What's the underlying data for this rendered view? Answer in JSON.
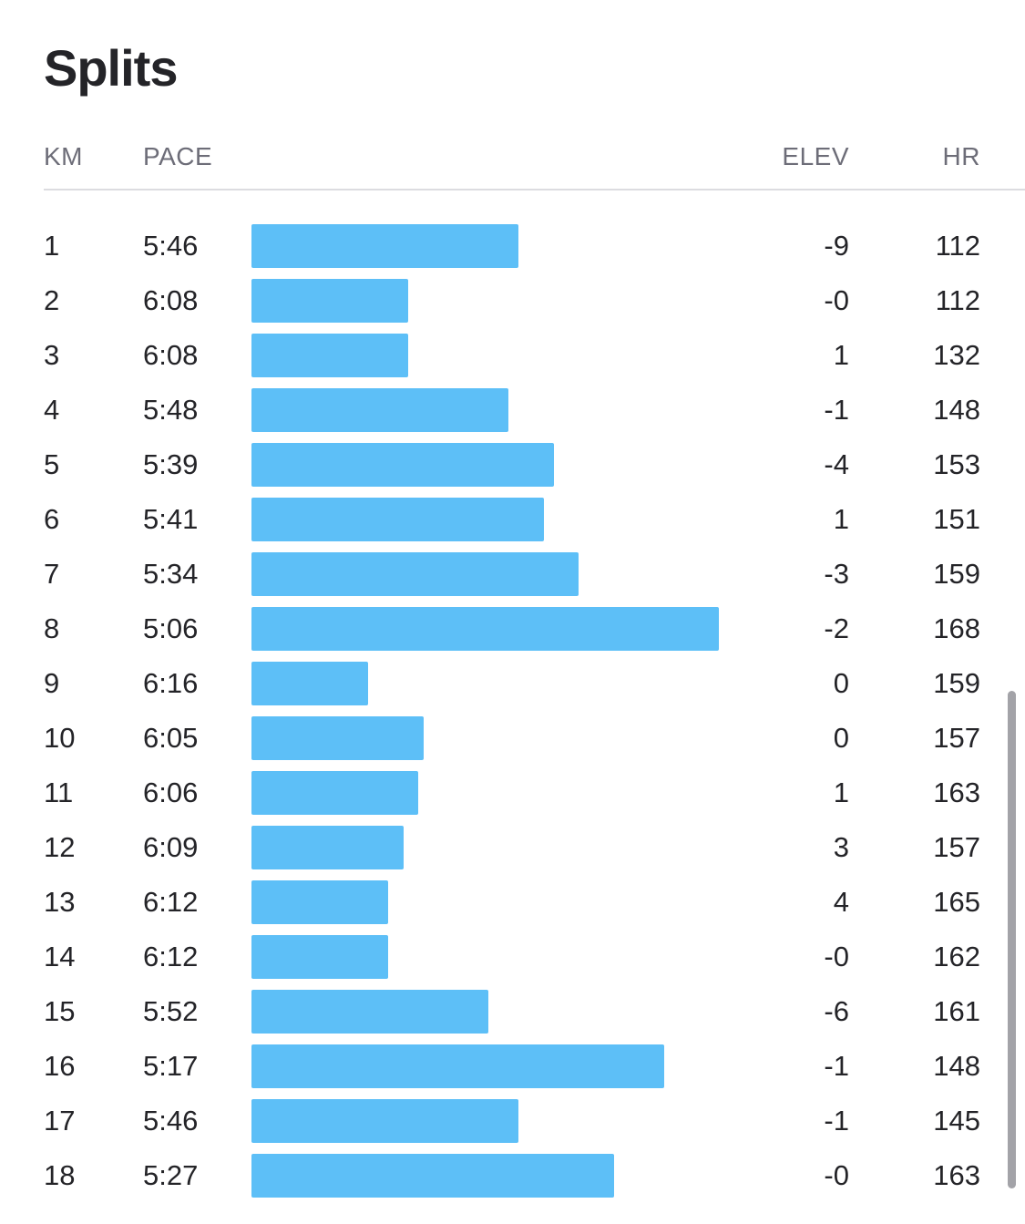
{
  "title": "Splits",
  "columns": {
    "km": "KM",
    "pace": "PACE",
    "elev": "ELEV",
    "hr": "HR"
  },
  "colors": {
    "bar": "#5dbff7",
    "text": "#242428",
    "header_text": "#6d6d78",
    "divider": "#dcdce0"
  },
  "chart_data": {
    "type": "bar",
    "orientation": "horizontal",
    "categories": [
      "1",
      "2",
      "3",
      "4",
      "5",
      "6",
      "7",
      "8",
      "9",
      "10",
      "11",
      "12",
      "13",
      "14",
      "15",
      "16",
      "17",
      "18"
    ],
    "series": [
      {
        "values": [
          "5:46",
          "6:08",
          "6:08",
          "5:48",
          "5:39",
          "5:41",
          "5:34",
          "5:06",
          "6:16",
          "6:05",
          "6:06",
          "6:09",
          "6:12",
          "6:12",
          "5:52",
          "5:17",
          "5:46",
          "5:27"
        ]
      }
    ]
  },
  "splits": [
    {
      "km": "1",
      "pace": "5:46",
      "elev": "-9",
      "hr": "112"
    },
    {
      "km": "2",
      "pace": "6:08",
      "elev": "-0",
      "hr": "112"
    },
    {
      "km": "3",
      "pace": "6:08",
      "elev": "1",
      "hr": "132"
    },
    {
      "km": "4",
      "pace": "5:48",
      "elev": "-1",
      "hr": "148"
    },
    {
      "km": "5",
      "pace": "5:39",
      "elev": "-4",
      "hr": "153"
    },
    {
      "km": "6",
      "pace": "5:41",
      "elev": "1",
      "hr": "151"
    },
    {
      "km": "7",
      "pace": "5:34",
      "elev": "-3",
      "hr": "159"
    },
    {
      "km": "8",
      "pace": "5:06",
      "elev": "-2",
      "hr": "168"
    },
    {
      "km": "9",
      "pace": "6:16",
      "elev": "0",
      "hr": "159"
    },
    {
      "km": "10",
      "pace": "6:05",
      "elev": "0",
      "hr": "157"
    },
    {
      "km": "11",
      "pace": "6:06",
      "elev": "1",
      "hr": "163"
    },
    {
      "km": "12",
      "pace": "6:09",
      "elev": "3",
      "hr": "157"
    },
    {
      "km": "13",
      "pace": "6:12",
      "elev": "4",
      "hr": "165"
    },
    {
      "km": "14",
      "pace": "6:12",
      "elev": "-0",
      "hr": "162"
    },
    {
      "km": "15",
      "pace": "5:52",
      "elev": "-6",
      "hr": "161"
    },
    {
      "km": "16",
      "pace": "5:17",
      "elev": "-1",
      "hr": "148"
    },
    {
      "km": "17",
      "pace": "5:46",
      "elev": "-1",
      "hr": "145"
    },
    {
      "km": "18",
      "pace": "5:27",
      "elev": "-0",
      "hr": "163"
    }
  ]
}
